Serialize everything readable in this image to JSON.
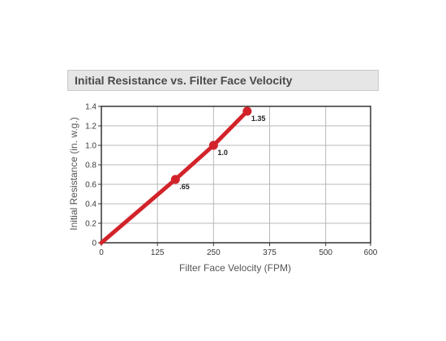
{
  "colors": {
    "series": "#d2232a",
    "grid": "#b8b8b8",
    "axis": "#333333",
    "title_bg": "#e6e6e6"
  },
  "chart_data": {
    "type": "line",
    "title": "Initial Resistance vs. Filter Face Velocity",
    "xlabel": "Filter Face Velocity (FPM)",
    "ylabel": "Initial Resistance (in. w.g.)",
    "xlim": [
      0,
      600
    ],
    "ylim": [
      0,
      1.4
    ],
    "x_ticks": [
      "0",
      "125",
      "250",
      "375",
      "500",
      "600"
    ],
    "x_tick_values": [
      0,
      125,
      250,
      375,
      500,
      600
    ],
    "y_ticks": [
      "0",
      "0.2",
      "0.4",
      "0.6",
      "0.8",
      "1.0",
      "1.2",
      "1.4"
    ],
    "y_tick_values": [
      0,
      0.2,
      0.4,
      0.6,
      0.8,
      1.0,
      1.2,
      1.4
    ],
    "grid": true,
    "series": [
      {
        "x": [
          0,
          165,
          250,
          325
        ],
        "y": [
          0,
          0.65,
          1.0,
          1.35
        ],
        "markers": [
          false,
          true,
          true,
          true
        ],
        "labels": [
          "",
          ".65",
          "1.0",
          "1.35"
        ]
      }
    ]
  }
}
